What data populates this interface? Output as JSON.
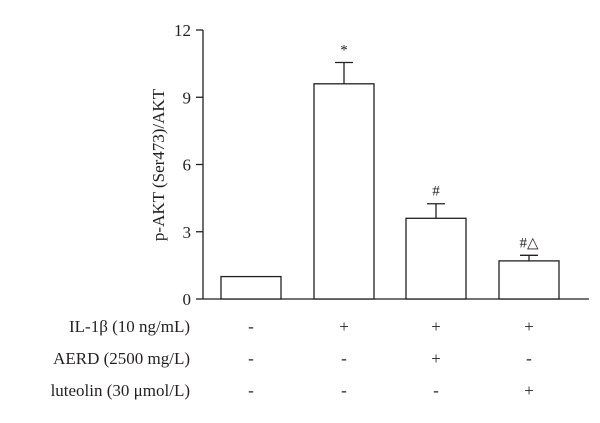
{
  "chart_data": {
    "type": "bar",
    "ylabel": "p-AKT (Ser473)/AKT",
    "ylim": [
      0,
      12
    ],
    "yticks": [
      0,
      3,
      6,
      9,
      12
    ],
    "bars": [
      {
        "value": 1.0,
        "error": 0,
        "annotation": ""
      },
      {
        "value": 9.6,
        "error": 0.95,
        "annotation": "*"
      },
      {
        "value": 3.6,
        "error": 0.65,
        "annotation": "#"
      },
      {
        "value": 1.7,
        "error": 0.25,
        "annotation": "#△"
      }
    ],
    "treatments": [
      {
        "label": "IL-1β (10 ng/mL)",
        "values": [
          "-",
          "+",
          "+",
          "+"
        ]
      },
      {
        "label": "AERD (2500 mg/L)",
        "values": [
          "-",
          "-",
          "+",
          "-"
        ]
      },
      {
        "label": "luteolin (30 μmol/L)",
        "values": [
          "-",
          "-",
          "-",
          "+"
        ]
      }
    ],
    "bar_color": "#ffffff",
    "edge_color": "#231f20"
  }
}
